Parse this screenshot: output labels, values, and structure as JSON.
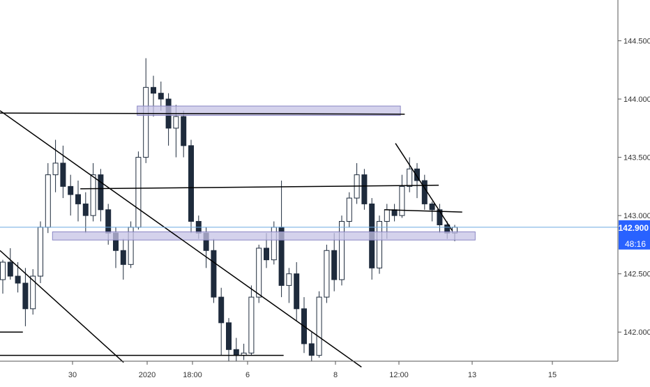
{
  "chart_data": {
    "type": "candlestick",
    "symbol_hint": "",
    "y_axis": {
      "ticks": [
        "144.500",
        "144.000",
        "143.500",
        "143.000",
        "142.500",
        "142.000"
      ],
      "tick_values": [
        144.5,
        144.0,
        143.5,
        143.0,
        142.5,
        142.0
      ],
      "range": [
        141.75,
        144.85
      ]
    },
    "x_axis": {
      "ticks": [
        "30",
        "2020",
        "18:00",
        "6",
        "8",
        "12:00",
        "13",
        "15"
      ]
    },
    "last_price": {
      "value": 142.9,
      "label": "142.900",
      "countdown": "48:16"
    },
    "colors": {
      "candle": "#1e2b3c",
      "zone_fill": "#c5c3e6",
      "zone_stroke": "#8a86c4",
      "last_price_line": "#6aa9e0",
      "last_price_badge": "#2962ff",
      "axis_text": "#333333",
      "trendline": "#000000"
    },
    "candles_ohlc": [
      [
        142.45,
        142.62,
        142.33,
        142.6
      ],
      [
        142.6,
        142.72,
        142.45,
        142.48
      ],
      [
        142.48,
        142.6,
        142.34,
        142.42
      ],
      [
        142.42,
        142.55,
        142.05,
        142.2
      ],
      [
        142.2,
        142.54,
        142.15,
        142.48
      ],
      [
        142.48,
        142.95,
        142.42,
        142.9
      ],
      [
        142.9,
        143.45,
        142.85,
        143.35
      ],
      [
        143.35,
        143.65,
        143.2,
        143.45
      ],
      [
        143.45,
        143.6,
        143.15,
        143.25
      ],
      [
        143.25,
        143.35,
        143.0,
        143.18
      ],
      [
        143.18,
        143.3,
        142.95,
        143.1
      ],
      [
        143.1,
        143.2,
        142.85,
        143.0
      ],
      [
        143.0,
        143.45,
        142.95,
        143.35
      ],
      [
        143.35,
        143.4,
        142.95,
        143.05
      ],
      [
        143.05,
        143.1,
        142.75,
        142.85
      ],
      [
        142.85,
        142.9,
        142.55,
        142.7
      ],
      [
        142.7,
        142.8,
        142.45,
        142.58
      ],
      [
        142.58,
        142.95,
        142.55,
        142.9
      ],
      [
        142.9,
        143.55,
        142.88,
        143.5
      ],
      [
        143.5,
        144.35,
        143.45,
        144.1
      ],
      [
        144.1,
        144.2,
        143.85,
        144.05
      ],
      [
        144.05,
        144.15,
        143.9,
        144.0
      ],
      [
        144.0,
        144.05,
        143.6,
        143.75
      ],
      [
        143.75,
        143.95,
        143.5,
        143.85
      ],
      [
        143.85,
        143.9,
        143.5,
        143.6
      ],
      [
        143.6,
        143.65,
        142.85,
        142.95
      ],
      [
        142.95,
        143.0,
        142.8,
        142.85
      ],
      [
        142.85,
        142.9,
        142.55,
        142.7
      ],
      [
        142.7,
        142.8,
        142.25,
        142.3
      ],
      [
        142.3,
        142.38,
        141.8,
        142.08
      ],
      [
        142.08,
        142.12,
        141.75,
        141.85
      ],
      [
        141.85,
        141.95,
        141.75,
        141.8
      ],
      [
        141.8,
        141.9,
        141.76,
        141.82
      ],
      [
        141.82,
        142.4,
        141.8,
        142.3
      ],
      [
        142.3,
        142.75,
        142.25,
        142.72
      ],
      [
        142.72,
        142.85,
        142.55,
        142.62
      ],
      [
        142.62,
        142.95,
        142.58,
        142.9
      ],
      [
        142.9,
        143.3,
        142.3,
        142.4
      ],
      [
        142.4,
        142.55,
        142.25,
        142.5
      ],
      [
        142.5,
        142.6,
        142.1,
        142.2
      ],
      [
        142.2,
        142.3,
        141.82,
        141.9
      ],
      [
        141.9,
        142.0,
        141.75,
        141.8
      ],
      [
        141.8,
        142.35,
        141.78,
        142.3
      ],
      [
        142.3,
        142.75,
        142.25,
        142.7
      ],
      [
        142.7,
        142.85,
        142.35,
        142.45
      ],
      [
        142.45,
        143.0,
        142.4,
        142.95
      ],
      [
        142.95,
        143.2,
        142.9,
        143.15
      ],
      [
        143.15,
        143.45,
        143.1,
        143.35
      ],
      [
        143.35,
        143.4,
        143.05,
        143.1
      ],
      [
        143.1,
        143.15,
        142.45,
        142.55
      ],
      [
        142.55,
        143.0,
        142.5,
        142.95
      ],
      [
        142.95,
        143.1,
        142.8,
        143.05
      ],
      [
        143.05,
        143.1,
        142.95,
        143.0
      ],
      [
        143.0,
        143.35,
        142.98,
        143.25
      ],
      [
        143.25,
        143.5,
        143.2,
        143.4
      ],
      [
        143.4,
        143.45,
        143.15,
        143.3
      ],
      [
        143.3,
        143.35,
        143.05,
        143.1
      ],
      [
        143.1,
        143.12,
        142.95,
        143.05
      ],
      [
        143.05,
        143.1,
        142.85,
        142.92
      ],
      [
        142.92,
        142.95,
        142.8,
        142.85
      ],
      [
        142.85,
        142.92,
        142.78,
        142.9
      ]
    ],
    "zones": [
      {
        "name": "upper-supply-zone",
        "x_from": 0.222,
        "x_to": 0.648,
        "y_top": 143.94,
        "y_bottom": 143.86
      },
      {
        "name": "lower-demand-zone",
        "x_from": 0.085,
        "x_to": 0.769,
        "y_top": 142.86,
        "y_bottom": 142.79
      }
    ],
    "trendlines": [
      {
        "from": [
          0.0,
          143.88
        ],
        "to": [
          0.655,
          143.87
        ]
      },
      {
        "from": [
          0.0,
          143.9
        ],
        "to": [
          0.585,
          141.7
        ]
      },
      {
        "from": [
          0.0,
          142.7
        ],
        "to": [
          0.2,
          141.74
        ]
      },
      {
        "from": [
          0.13,
          143.23
        ],
        "to": [
          0.71,
          143.26
        ]
      },
      {
        "from": [
          0.622,
          143.05
        ],
        "to": [
          0.748,
          143.03
        ]
      },
      {
        "from": [
          0.64,
          143.62
        ],
        "to": [
          0.732,
          142.87
        ]
      },
      {
        "from": [
          0.0,
          142.0
        ],
        "to": [
          0.037,
          142.0
        ]
      },
      {
        "from": [
          0.0,
          141.8
        ],
        "to": [
          0.459,
          141.8
        ]
      }
    ]
  }
}
